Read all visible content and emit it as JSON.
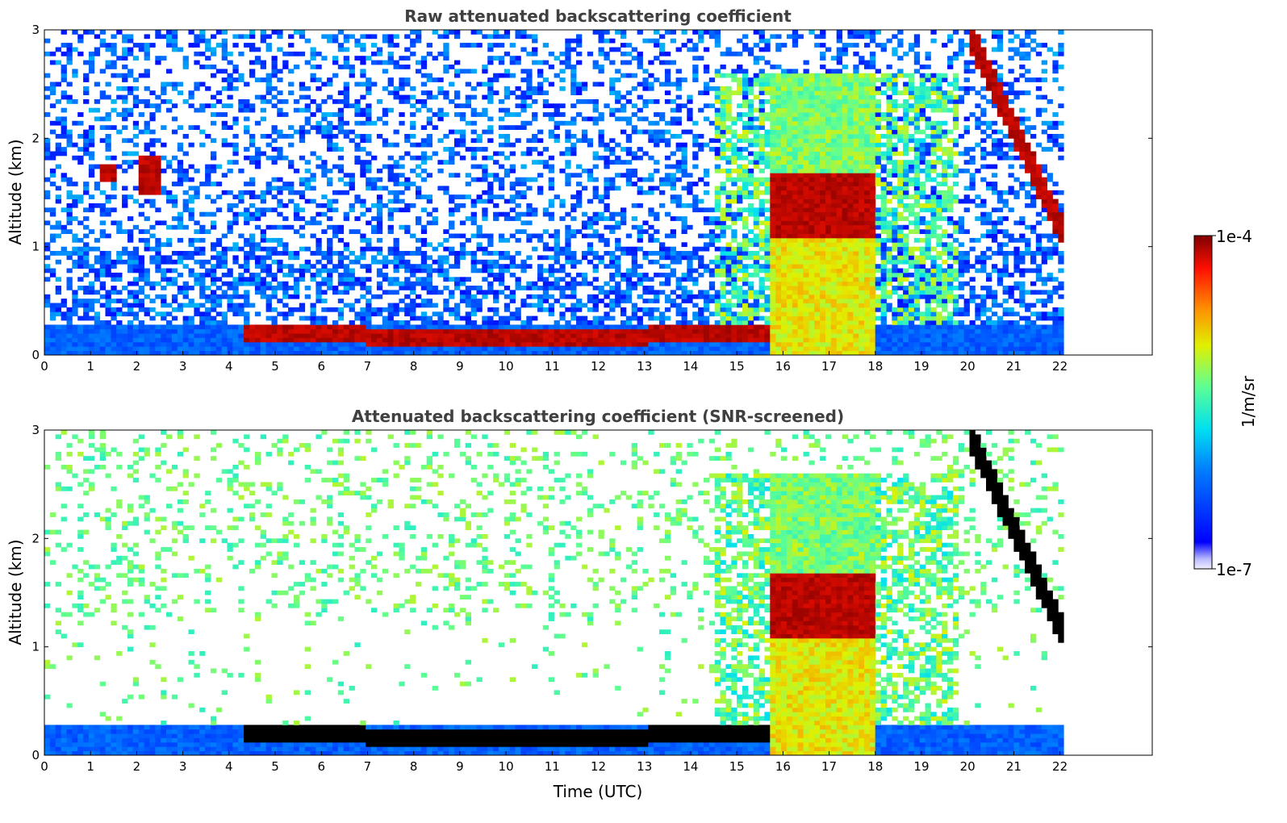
{
  "chart_data": [
    {
      "type": "heatmap",
      "title": "Raw attenuated backscattering coefficient",
      "xlabel": "",
      "ylabel": "Altitude (km)",
      "xlim": [
        0,
        24
      ],
      "ylim": [
        0,
        3
      ],
      "xticks": [
        "0",
        "1",
        "2",
        "3",
        "4",
        "5",
        "6",
        "7",
        "8",
        "9",
        "10",
        "11",
        "12",
        "13",
        "14",
        "15",
        "16",
        "17",
        "18",
        "19",
        "20",
        "21",
        "22"
      ],
      "yticks": [
        "0",
        "1",
        "2",
        "3"
      ],
      "data_time_range": [
        0,
        22.1
      ],
      "features": [
        {
          "name": "boundary layer",
          "t_start": 4.3,
          "t_end": 15.7,
          "altitude_km": [
            0.05,
            0.35
          ],
          "level": "high"
        },
        {
          "name": "low cloud 1",
          "t_start": 1.2,
          "t_end": 1.6,
          "altitude_km": [
            1.6,
            1.75
          ],
          "level": "high"
        },
        {
          "name": "low cloud 2",
          "t_start": 2.0,
          "t_end": 2.5,
          "altitude_km": [
            1.5,
            1.85
          ],
          "level": "high"
        },
        {
          "name": "convective cloud",
          "t_start": 15.7,
          "t_end": 18.0,
          "altitude_km": [
            1.1,
            1.7
          ],
          "level": "high"
        },
        {
          "name": "descending cloud",
          "t_start": 20.0,
          "t_end": 22.1,
          "altitude_km": [
            1.0,
            3.0
          ],
          "level": "high"
        }
      ]
    },
    {
      "type": "heatmap",
      "title": "Attenuated backscattering coefficient (SNR-screened)",
      "xlabel": "Time (UTC)",
      "ylabel": "Altitude (km)",
      "xlim": [
        0,
        24
      ],
      "ylim": [
        0,
        3
      ],
      "xticks": [
        "0",
        "1",
        "2",
        "3",
        "4",
        "5",
        "6",
        "7",
        "8",
        "9",
        "10",
        "11",
        "12",
        "13",
        "14",
        "15",
        "16",
        "17",
        "18",
        "19",
        "20",
        "21",
        "22"
      ],
      "yticks": [
        "0",
        "1",
        "2",
        "3"
      ],
      "data_time_range": [
        0,
        22.1
      ],
      "features": [
        {
          "name": "boundary layer",
          "t_start": 4.3,
          "t_end": 15.7,
          "altitude_km": [
            0.05,
            0.35
          ],
          "level": "saturated"
        },
        {
          "name": "convective cloud",
          "t_start": 15.7,
          "t_end": 18.0,
          "altitude_km": [
            1.1,
            1.7
          ],
          "level": "high"
        },
        {
          "name": "descending cloud",
          "t_start": 20.0,
          "t_end": 22.1,
          "altitude_km": [
            1.0,
            3.0
          ],
          "level": "saturated"
        }
      ]
    }
  ],
  "colorbar": {
    "min_label": "1e-7",
    "max_label": "1e-4",
    "unit_label": "1/m/sr",
    "colormap": "jet"
  }
}
